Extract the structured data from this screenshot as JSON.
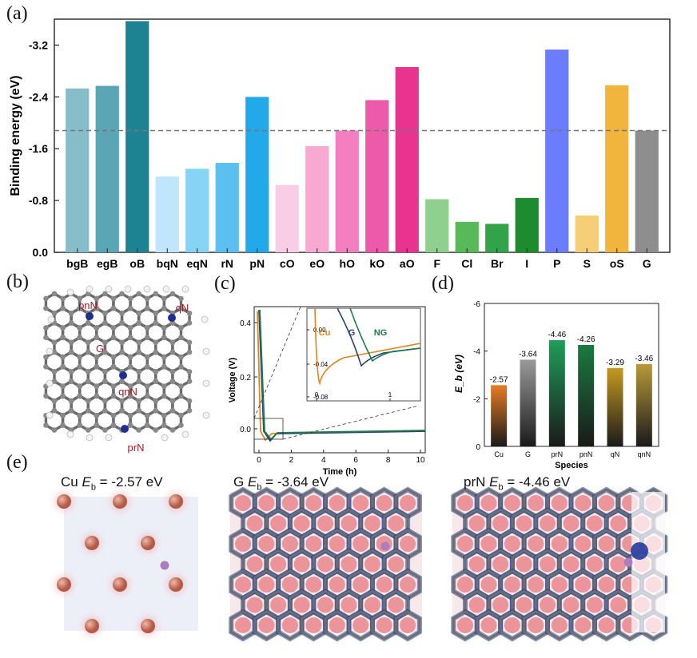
{
  "panels": {
    "a": "(a)",
    "b": "(b)",
    "c": "(c)",
    "d": "(d)",
    "e": "(e)"
  },
  "chart_data": [
    {
      "id": "a",
      "type": "bar",
      "ylabel": "Binding energy (eV)",
      "yticks": [
        "-3.2",
        "-2.4",
        "-1.6",
        "-0.8",
        "0.0"
      ],
      "ytick_values": [
        3.2,
        2.4,
        1.6,
        0.8,
        0.0
      ],
      "ylim": [
        0,
        3.6
      ],
      "reference_line": 1.88,
      "categories": [
        "bgB",
        "egB",
        "oB",
        "bqN",
        "eqN",
        "rN",
        "pN",
        "cO",
        "eO",
        "hO",
        "kO",
        "aO",
        "F",
        "Cl",
        "Br",
        "I",
        "P",
        "S",
        "oS",
        "G"
      ],
      "values": [
        2.53,
        2.57,
        3.57,
        1.17,
        1.29,
        1.38,
        2.4,
        1.04,
        1.64,
        1.88,
        2.35,
        2.86,
        0.82,
        0.47,
        0.44,
        0.84,
        3.13,
        0.57,
        2.58,
        1.88
      ],
      "colors": [
        "#86bdc9",
        "#5aa6b5",
        "#1d8291",
        "#bfe6fa",
        "#86d3f5",
        "#5bc0f0",
        "#22a9ea",
        "#f9cde6",
        "#f7a9d2",
        "#f47fc0",
        "#ec5aa9",
        "#e8338f",
        "#8fd08f",
        "#57b957",
        "#33a34a",
        "#1c8c2e",
        "#6b7dfc",
        "#f7ce78",
        "#f1b53d",
        "#8e8e8e"
      ]
    },
    {
      "id": "c",
      "type": "line",
      "xlabel": "Time (h)",
      "ylabel": "Voltage (V)",
      "xticks": [
        "0",
        "2",
        "4",
        "6",
        "8",
        "10"
      ],
      "yticks": [
        "0.4",
        "0.2",
        "0.0"
      ],
      "inset": {
        "yticks": [
          "0.00",
          "-0.04",
          "-0.08"
        ],
        "xticks": [
          "0",
          "1"
        ],
        "series": [
          {
            "name": "Cu",
            "color": "#e2841e"
          },
          {
            "name": "G",
            "color": "#2a3f7a"
          },
          {
            "name": "NG",
            "color": "#1c7c4a"
          }
        ]
      }
    },
    {
      "id": "d",
      "type": "bar",
      "ylabel": "E_b (eV)",
      "xlabel": "Species",
      "yticks": [
        "-6",
        "-4",
        "-2",
        "0"
      ],
      "ylim": [
        0,
        6
      ],
      "categories": [
        "Cu",
        "G",
        "prN",
        "pnN",
        "qN",
        "qnN"
      ],
      "values": [
        -2.57,
        -3.64,
        -4.46,
        -4.26,
        -3.29,
        -3.46
      ],
      "value_labels": [
        "-2.57",
        "-3.64",
        "-4.46",
        "-4.26",
        "-3.29",
        "-3.46"
      ],
      "colors": [
        "#e67c24",
        "#9a9a9a",
        "#1f9e5a",
        "#1a7a40",
        "#c69a20",
        "#b89a38"
      ]
    }
  ],
  "molecule": {
    "labels": [
      "pnN",
      "qN",
      "G",
      "qnN",
      "prN"
    ]
  },
  "simulations": [
    {
      "prefix": "Cu",
      "value": "= -2.57 eV"
    },
    {
      "prefix": "G",
      "value": "= -3.64 eV"
    },
    {
      "prefix": "prN",
      "value": "= -4.46 eV"
    }
  ]
}
